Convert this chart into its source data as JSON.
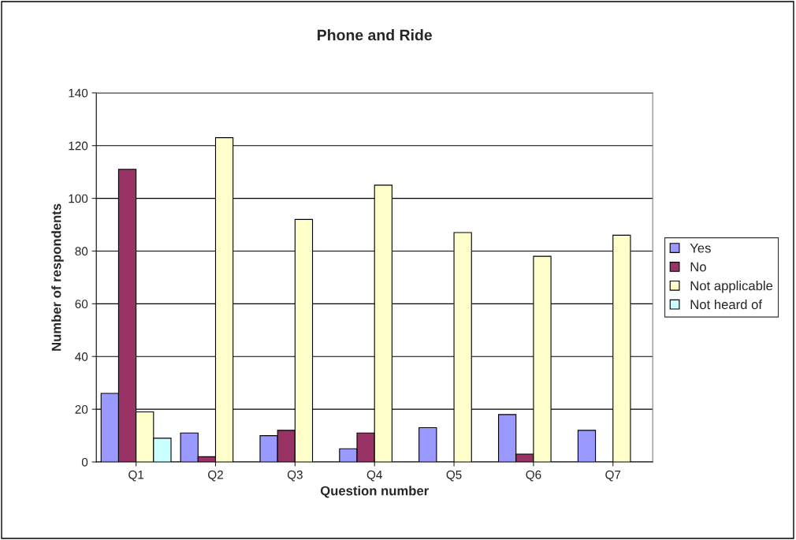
{
  "chart_data": {
    "type": "bar",
    "title": "Phone and Ride",
    "xlabel": "Question number",
    "ylabel": "Number of respondents",
    "categories": [
      "Q1",
      "Q2",
      "Q3",
      "Q4",
      "Q5",
      "Q6",
      "Q7"
    ],
    "series": [
      {
        "name": "Yes",
        "color": "#9999ff",
        "values": [
          26,
          11,
          10,
          5,
          13,
          18,
          12
        ]
      },
      {
        "name": "No",
        "color": "#993366",
        "values": [
          111,
          2,
          12,
          11,
          null,
          3,
          null
        ]
      },
      {
        "name": "Not applicable",
        "color": "#ffffcc",
        "values": [
          19,
          123,
          92,
          105,
          87,
          78,
          86
        ]
      },
      {
        "name": "Not heard of",
        "color": "#ccffff",
        "values": [
          9,
          null,
          null,
          null,
          null,
          null,
          null
        ]
      }
    ],
    "ylim": [
      0,
      140
    ],
    "yticks": [
      0,
      20,
      40,
      60,
      80,
      100,
      120,
      140
    ],
    "grid": "y",
    "legend": "right"
  }
}
